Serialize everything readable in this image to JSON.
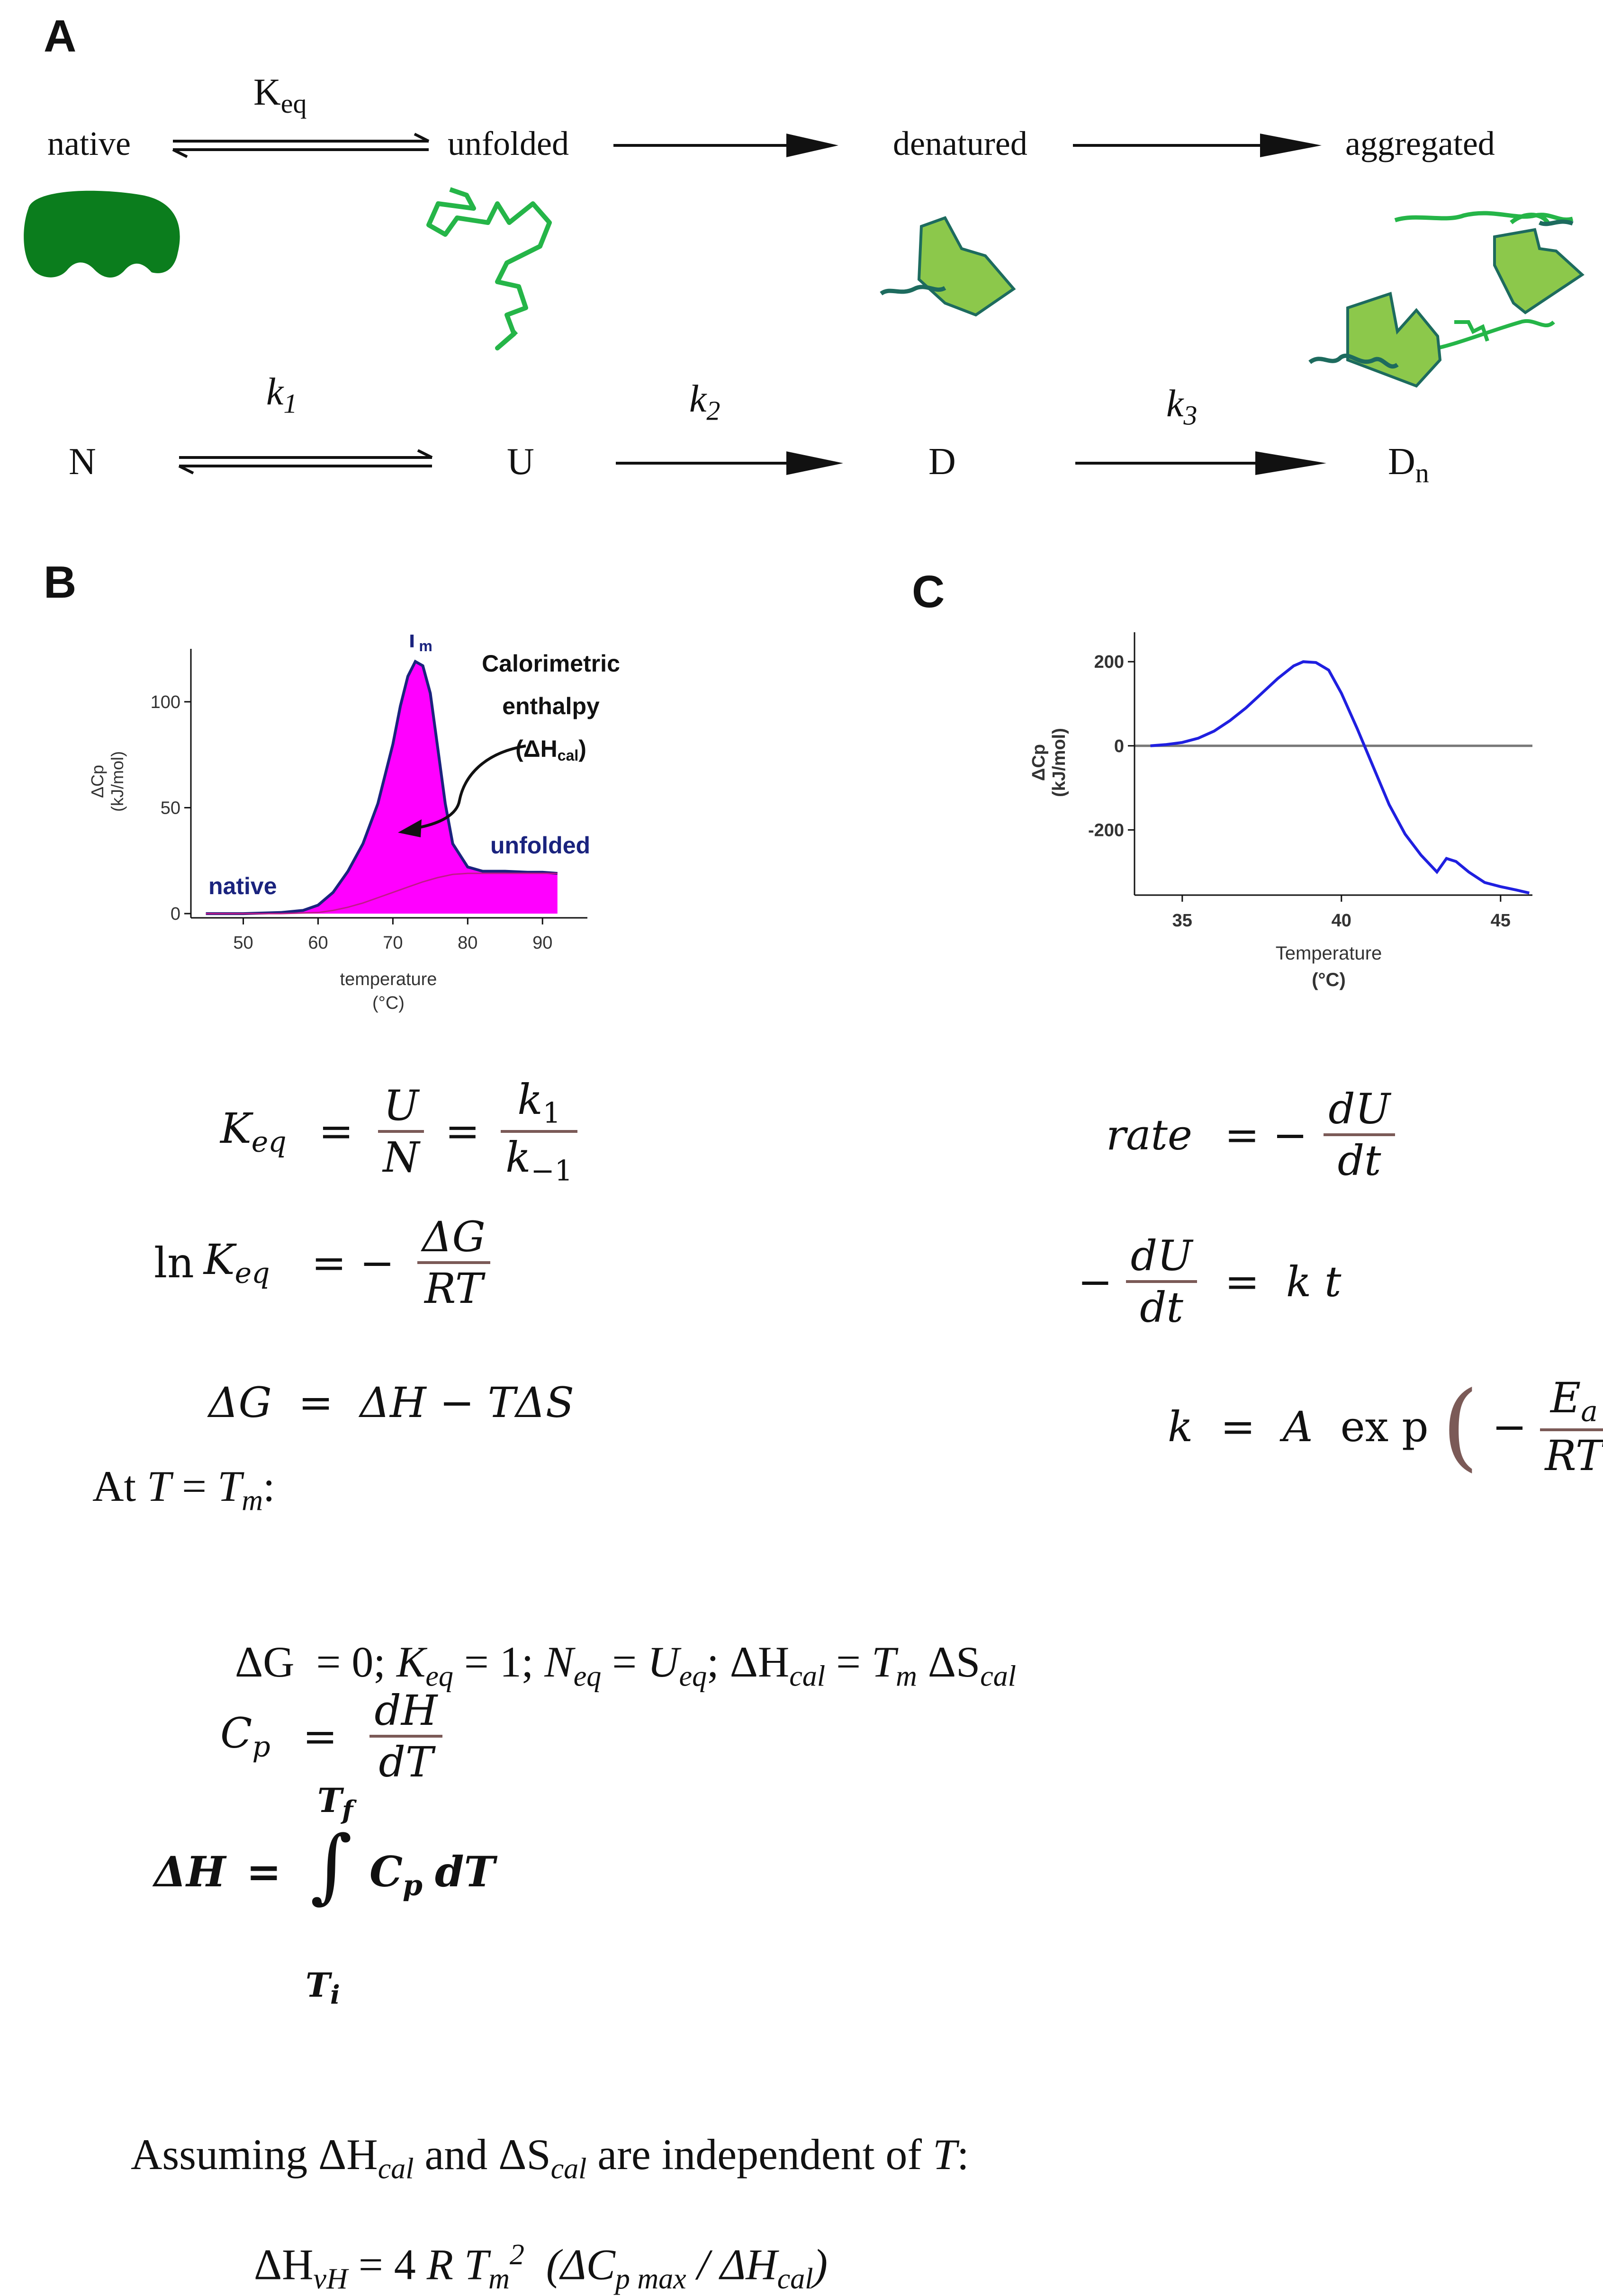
{
  "panels": {
    "a": "A",
    "b": "B",
    "c": "C"
  },
  "scheme_top": {
    "native": "native",
    "unfolded": "unfolded",
    "denatured": "denatured",
    "aggregated": "aggregated",
    "keq": "K",
    "keq_sub": "eq"
  },
  "scheme_bottom": {
    "n": "N",
    "u": "U",
    "d": "D",
    "dn": "D",
    "dn_sub": "n",
    "k1": "k",
    "k1_sub": "1",
    "k2": "k",
    "k2_sub": "2",
    "k3": "k",
    "k3_sub": "3"
  },
  "colors": {
    "dark_green": "#0b7d1d",
    "chain_green": "#25b548",
    "light_green": "#8cc84b",
    "teal": "#1d6b5e",
    "magenta": "#ff00ff",
    "navy": "#1a237e",
    "blue": "#1f1fe0",
    "fraction_bar": "#7b5a57"
  },
  "chart_b": {
    "type": "area",
    "title": "",
    "ylabel_line1": "ΔCp",
    "ylabel_line2": "(kJ/mol)",
    "xlabel_line1": "temperature",
    "xlabel_line2": "(°C)",
    "xlim": [
      43,
      96
    ],
    "ylim": [
      -2,
      125
    ],
    "xticks": [
      50,
      60,
      70,
      80,
      90
    ],
    "yticks": [
      0,
      50,
      100
    ],
    "peak_label": "T",
    "peak_label_sub": "m",
    "annotation_line1": "Calorimetric",
    "annotation_line2": "enthalpy",
    "annotation_line3": "(ΔH",
    "annotation_line3_sub": "cal",
    "annotation_line3_end": ")",
    "native_label": "native",
    "unfolded_label": "unfolded",
    "series": [
      {
        "name": "ΔCp",
        "x": [
          45,
          50,
          55,
          58,
          60,
          62,
          64,
          66,
          68,
          70,
          71,
          72,
          73,
          74,
          75,
          76,
          77,
          78,
          80,
          82,
          85,
          88,
          90,
          92
        ],
        "y": [
          0,
          0,
          0.5,
          1.5,
          4,
          10,
          20,
          33,
          52,
          80,
          98,
          112,
          119,
          117,
          104,
          78,
          52,
          33,
          22,
          20,
          20,
          19.5,
          19.5,
          19
        ]
      },
      {
        "name": "baseline",
        "x": [
          45,
          50,
          55,
          60,
          62,
          64,
          66,
          68,
          70,
          72,
          74,
          76,
          78,
          80,
          85,
          90,
          92
        ],
        "y": [
          0,
          0,
          0,
          0.5,
          1.5,
          3,
          5,
          7.5,
          10,
          12.5,
          15,
          17,
          18.5,
          19,
          19,
          19,
          19
        ]
      }
    ]
  },
  "chart_c": {
    "type": "line",
    "ylabel_line1": "ΔCp",
    "ylabel_line2": "(kJ/mol)",
    "xlabel_line1": "Temperature",
    "xlabel_line2": "(°C)",
    "xlim": [
      33.5,
      46
    ],
    "ylim": [
      -355,
      270
    ],
    "xticks": [
      35,
      40,
      45
    ],
    "yticks": [
      -200,
      0,
      200
    ],
    "series": [
      {
        "name": "ΔCp",
        "x": [
          34,
          34.5,
          35,
          35.5,
          36,
          36.5,
          37,
          37.5,
          38,
          38.5,
          38.8,
          39.2,
          39.6,
          40,
          40.5,
          41,
          41.5,
          42,
          42.5,
          43,
          43.3,
          43.6,
          44,
          44.5,
          45,
          45.5,
          45.9
        ],
        "y": [
          0,
          3,
          8,
          18,
          35,
          60,
          90,
          125,
          160,
          190,
          200,
          198,
          180,
          125,
          40,
          -50,
          -140,
          -210,
          -260,
          -300,
          -268,
          -275,
          -300,
          -325,
          -335,
          -343,
          -350
        ]
      }
    ]
  },
  "equations_left": {
    "e1_lhs": "K",
    "e1_lhs_sub": "eq",
    "e1_f1_num": "U",
    "e1_f1_den": "N",
    "e1_f2_num": "k",
    "e1_f2_num_sub": "1",
    "e1_f2_den": "k",
    "e1_f2_den_sub": "−1",
    "e2_ln": "ln",
    "e2_k": "K",
    "e2_k_sub": "eq",
    "e2_eq": "= −",
    "e2_num": "ΔG",
    "e2_den": "RT",
    "e3": "ΔG  =  ΔH − TΔS",
    "e4_text": "At ",
    "e4_T": "T",
    "e4_eq": " = ",
    "e4_Tm": "T",
    "e4_Tm_sub": "m",
    "e4_colon": ":",
    "e5_p1": "ΔG",
    "e5_p2": "  = 0; ",
    "e5_k": "K",
    "e5_k_sub": "eq",
    "e5_p3": " = 1; ",
    "e5_n": "N",
    "e5_n_sub": "eq",
    "e5_p4": " = ",
    "e5_u": "U",
    "e5_u_sub": "eq",
    "e5_p5": "; ΔH",
    "e5_h_sub": "cal",
    "e5_p6": " = ",
    "e5_t": "T",
    "e5_t_sub": "m",
    "e5_p7": " ΔS",
    "e5_s_sub": "cal",
    "e6_lhs": "C",
    "e6_lhs_sub": "p",
    "e6_num": "dH",
    "e6_den": "dT",
    "e7_lhs": "ΔH",
    "e7_eq": "=",
    "e7_upper": "T",
    "e7_upper_sub": "f",
    "e7_lower": "T",
    "e7_lower_sub": "i",
    "e7_int": "∫",
    "e7_body": "C",
    "e7_body_sub": "p",
    "e7_dt": "dT",
    "e8_p1": "Assuming ΔH",
    "e8_sub1": "cal",
    "e8_p2": " and ΔS",
    "e8_sub2": "cal",
    "e8_p3": " are independent of ",
    "e8_t": "T",
    "e8_p4": ":",
    "e9_p1": "ΔH",
    "e9_sub1": "vH",
    "e9_p2": " = 4 ",
    "e9_r": "R",
    "e9_t": " T",
    "e9_tsub": "m",
    "e9_sup": "2",
    "e9_p3": "  (ΔC",
    "e9_sub2": "p max",
    "e9_p4": " / ΔH",
    "e9_sub3": "cal",
    "e9_p5": ")"
  },
  "equations_right": {
    "r1_lhs": "rate",
    "r1_eq": "= −",
    "r1_num": "dU",
    "r1_den": "dt",
    "r2_minus": "−",
    "r2_num": "dU",
    "r2_den": "dt",
    "r2_rhs": "=  k t",
    "r3_lhs": "k",
    "r3_eq": "=",
    "r3_a": "A",
    "r3_exp": "ex p",
    "r3_minus": "−",
    "r3_num": "E",
    "r3_num_sub": "a",
    "r3_den": "RT"
  }
}
